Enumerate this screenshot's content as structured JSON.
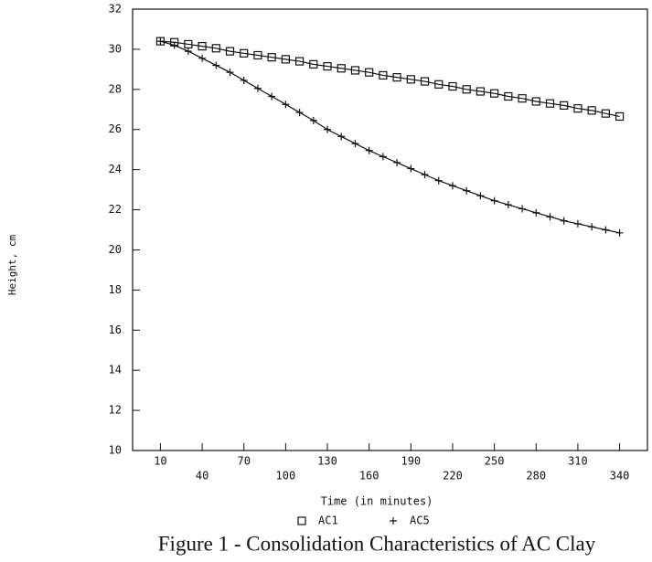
{
  "chart_data": {
    "type": "line",
    "caption": "Figure 1 - Consolidation Characteristics of AC Clay",
    "x_label": "Time (in minutes)",
    "y_label": "Height, cm",
    "x": [
      10,
      20,
      30,
      40,
      50,
      60,
      70,
      80,
      90,
      100,
      110,
      120,
      130,
      140,
      150,
      160,
      170,
      180,
      190,
      200,
      210,
      220,
      230,
      240,
      250,
      260,
      270,
      280,
      290,
      300,
      310,
      320,
      330,
      340
    ],
    "series": [
      {
        "name": "AC1",
        "color": "#111111",
        "marker": "square",
        "values": [
          30.4,
          30.35,
          30.25,
          30.15,
          30.05,
          29.9,
          29.8,
          29.7,
          29.6,
          29.5,
          29.4,
          29.25,
          29.15,
          29.05,
          28.95,
          28.85,
          28.7,
          28.6,
          28.5,
          28.4,
          28.25,
          28.15,
          28.0,
          27.9,
          27.8,
          27.65,
          27.55,
          27.4,
          27.3,
          27.2,
          27.05,
          26.95,
          26.8,
          26.65
        ]
      },
      {
        "name": "AC5",
        "color": "#111111",
        "marker": "plus",
        "values": [
          30.4,
          30.2,
          29.9,
          29.55,
          29.2,
          28.85,
          28.45,
          28.05,
          27.65,
          27.25,
          26.85,
          26.45,
          26.0,
          25.65,
          25.3,
          24.95,
          24.65,
          24.35,
          24.05,
          23.75,
          23.45,
          23.2,
          22.95,
          22.7,
          22.45,
          22.25,
          22.05,
          21.85,
          21.65,
          21.45,
          21.3,
          21.15,
          21.0,
          20.85
        ]
      }
    ],
    "xlim": [
      -10,
      360
    ],
    "xticks": [
      10,
      40,
      70,
      100,
      130,
      160,
      190,
      220,
      250,
      280,
      310,
      340
    ],
    "ylim": [
      10,
      32
    ],
    "yticks": [
      10,
      12,
      14,
      16,
      18,
      20,
      22,
      24,
      26,
      28,
      30,
      32
    ]
  }
}
